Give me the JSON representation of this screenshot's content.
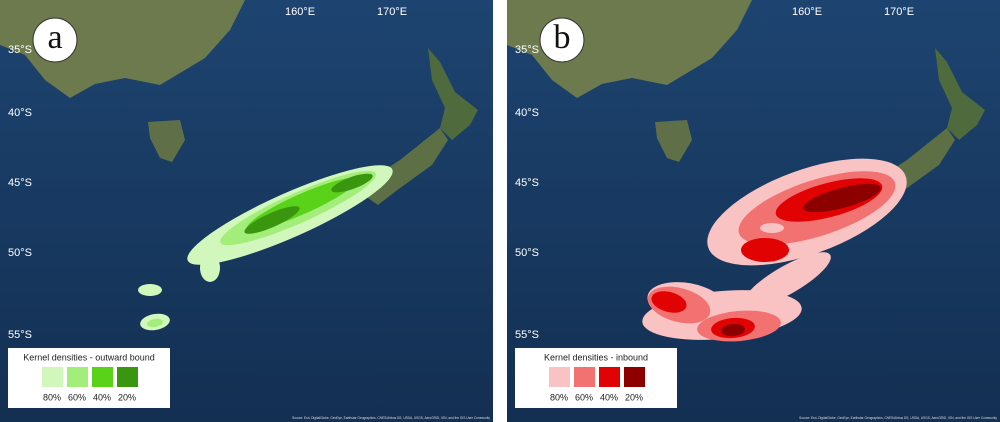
{
  "panels": [
    {
      "label": "a",
      "legend": {
        "title": "Kernel densities - outward bound",
        "items": [
          {
            "label": "80%",
            "color": "#d2f7bd"
          },
          {
            "label": "60%",
            "color": "#a3ee7a"
          },
          {
            "label": "40%",
            "color": "#5bd21a"
          },
          {
            "label": "20%",
            "color": "#3a960f"
          }
        ]
      }
    },
    {
      "label": "b",
      "legend": {
        "title": "Kernel densities - inbound",
        "items": [
          {
            "label": "80%",
            "color": "#f9c3c3"
          },
          {
            "label": "60%",
            "color": "#f27272"
          },
          {
            "label": "40%",
            "color": "#e10303"
          },
          {
            "label": "20%",
            "color": "#8c0000"
          }
        ]
      }
    }
  ],
  "latitude_labels": [
    "35°S",
    "40°S",
    "45°S",
    "50°S",
    "55°S"
  ],
  "longitude_labels": [
    "160°E",
    "170°E"
  ],
  "attribution": "Source: Esri, DigitalGlobe, GeoEye, Earthstar Geographics, CNES/Airbus DS, USDA, USGS, AeroGRID, IGN, and the GIS User Community"
}
